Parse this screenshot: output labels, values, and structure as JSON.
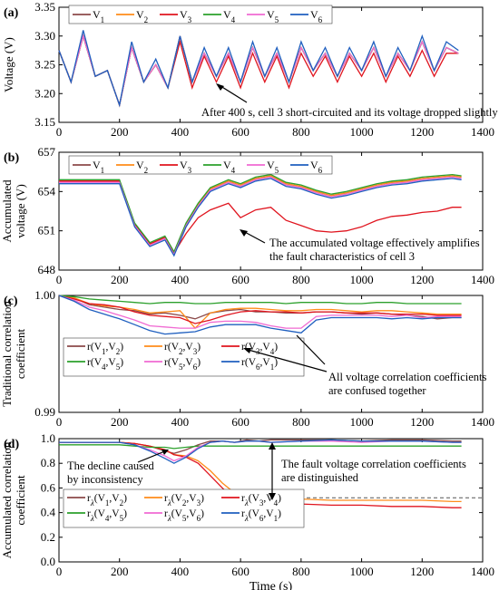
{
  "chart_data": [
    {
      "type": "line",
      "panel_label": "(a)",
      "ylabel": "Voltage (V)",
      "xlabel": "",
      "xlim": [
        0,
        1400
      ],
      "ylim": [
        3.15,
        3.35
      ],
      "xticks": [
        0,
        200,
        400,
        600,
        800,
        1000,
        1200,
        1400
      ],
      "yticks": [
        3.15,
        3.2,
        3.25,
        3.3,
        3.35
      ],
      "ytick_labels": [
        "3.15",
        "3.20",
        "3.25",
        "3.30",
        "3.35"
      ],
      "legend": [
        "V1",
        "V2",
        "V3",
        "V4",
        "V5",
        "V6"
      ],
      "annotation": "After 400 s, cell 3 short-circuited and its voltage dropped slightly",
      "x": [
        0,
        40,
        80,
        120,
        160,
        200,
        240,
        280,
        320,
        360,
        400,
        440,
        480,
        520,
        560,
        600,
        640,
        680,
        720,
        760,
        800,
        840,
        880,
        920,
        960,
        1000,
        1040,
        1080,
        1120,
        1160,
        1200,
        1240,
        1280,
        1320
      ],
      "series": [
        {
          "name": "V1",
          "values": [
            3.275,
            3.22,
            3.3,
            3.23,
            3.24,
            3.18,
            3.28,
            3.22,
            3.25,
            3.21,
            3.3,
            3.22,
            3.27,
            3.23,
            3.27,
            3.22,
            3.28,
            3.23,
            3.27,
            3.22,
            3.28,
            3.24,
            3.27,
            3.23,
            3.27,
            3.24,
            3.28,
            3.23,
            3.27,
            3.24,
            3.29,
            3.24,
            3.28,
            3.27
          ]
        },
        {
          "name": "V2",
          "values": [
            3.275,
            3.22,
            3.3,
            3.23,
            3.24,
            3.18,
            3.28,
            3.22,
            3.25,
            3.21,
            3.3,
            3.22,
            3.27,
            3.23,
            3.27,
            3.22,
            3.28,
            3.23,
            3.27,
            3.22,
            3.28,
            3.24,
            3.27,
            3.23,
            3.27,
            3.24,
            3.28,
            3.23,
            3.27,
            3.24,
            3.29,
            3.24,
            3.28,
            3.27
          ]
        },
        {
          "name": "V3",
          "values": [
            3.275,
            3.22,
            3.3,
            3.23,
            3.24,
            3.18,
            3.28,
            3.22,
            3.25,
            3.21,
            3.29,
            3.21,
            3.265,
            3.22,
            3.265,
            3.21,
            3.27,
            3.22,
            3.265,
            3.21,
            3.27,
            3.23,
            3.265,
            3.22,
            3.265,
            3.23,
            3.27,
            3.22,
            3.265,
            3.23,
            3.275,
            3.23,
            3.27,
            3.27
          ]
        },
        {
          "name": "V4",
          "values": [
            3.275,
            3.22,
            3.3,
            3.23,
            3.24,
            3.18,
            3.28,
            3.22,
            3.25,
            3.21,
            3.3,
            3.22,
            3.27,
            3.23,
            3.27,
            3.22,
            3.28,
            3.23,
            3.27,
            3.22,
            3.28,
            3.24,
            3.27,
            3.23,
            3.27,
            3.24,
            3.28,
            3.23,
            3.27,
            3.24,
            3.29,
            3.24,
            3.28,
            3.27
          ]
        },
        {
          "name": "V5",
          "values": [
            3.275,
            3.22,
            3.3,
            3.23,
            3.24,
            3.18,
            3.28,
            3.22,
            3.25,
            3.21,
            3.3,
            3.22,
            3.27,
            3.23,
            3.27,
            3.22,
            3.28,
            3.23,
            3.27,
            3.22,
            3.28,
            3.24,
            3.27,
            3.23,
            3.27,
            3.24,
            3.28,
            3.23,
            3.27,
            3.24,
            3.29,
            3.24,
            3.28,
            3.27
          ]
        },
        {
          "name": "V6",
          "values": [
            3.275,
            3.22,
            3.31,
            3.23,
            3.24,
            3.18,
            3.29,
            3.22,
            3.26,
            3.21,
            3.3,
            3.22,
            3.28,
            3.23,
            3.28,
            3.22,
            3.29,
            3.23,
            3.28,
            3.22,
            3.29,
            3.24,
            3.28,
            3.23,
            3.28,
            3.24,
            3.29,
            3.23,
            3.28,
            3.24,
            3.3,
            3.24,
            3.29,
            3.275
          ]
        }
      ]
    },
    {
      "type": "line",
      "panel_label": "(b)",
      "ylabel": "Accumulated voltage (V)",
      "xlabel": "",
      "xlim": [
        0,
        1400
      ],
      "ylim": [
        648,
        657
      ],
      "xticks": [
        0,
        200,
        400,
        600,
        800,
        1000,
        1200,
        1400
      ],
      "yticks": [
        648,
        651,
        654,
        657
      ],
      "ytick_labels": [
        "648",
        "651",
        "654",
        "657"
      ],
      "legend": [
        "V1",
        "V2",
        "V3",
        "V4",
        "V5",
        "V6"
      ],
      "annotation": "The accumulated voltage effectively amplifies the fault characteristics of cell 3",
      "x": [
        0,
        100,
        200,
        250,
        300,
        350,
        380,
        420,
        460,
        500,
        560,
        600,
        650,
        700,
        750,
        800,
        850,
        900,
        950,
        1000,
        1050,
        1100,
        1150,
        1200,
        1250,
        1300,
        1330
      ],
      "series": [
        {
          "name": "V1",
          "values": [
            654.8,
            654.8,
            654.8,
            651.5,
            650.0,
            650.5,
            649.3,
            651.5,
            653.0,
            654.2,
            654.8,
            654.5,
            655.0,
            655.2,
            654.6,
            654.4,
            654.0,
            653.7,
            653.9,
            654.2,
            654.5,
            654.7,
            654.8,
            655.0,
            655.1,
            655.2,
            655.1
          ]
        },
        {
          "name": "V2",
          "values": [
            654.8,
            654.8,
            654.8,
            651.5,
            650.0,
            650.5,
            649.3,
            651.5,
            653.0,
            654.2,
            654.8,
            654.5,
            655.0,
            655.2,
            654.6,
            654.4,
            654.0,
            653.7,
            653.9,
            654.2,
            654.5,
            654.7,
            654.8,
            655.0,
            655.1,
            655.2,
            655.1
          ]
        },
        {
          "name": "V3",
          "values": [
            654.8,
            654.8,
            654.8,
            651.5,
            650.0,
            650.5,
            649.3,
            650.8,
            652.0,
            652.6,
            653.1,
            652.0,
            652.6,
            652.8,
            651.8,
            651.4,
            651.0,
            650.9,
            651.0,
            651.3,
            651.8,
            652.1,
            652.2,
            652.4,
            652.5,
            652.8,
            652.8
          ]
        },
        {
          "name": "V4",
          "values": [
            654.9,
            654.9,
            654.9,
            651.6,
            650.1,
            650.6,
            649.4,
            651.6,
            653.1,
            654.3,
            654.9,
            654.6,
            655.1,
            655.3,
            654.7,
            654.5,
            654.1,
            653.8,
            654.0,
            654.3,
            654.6,
            654.8,
            654.9,
            655.1,
            655.2,
            655.3,
            655.2
          ]
        },
        {
          "name": "V5",
          "values": [
            654.7,
            654.7,
            654.7,
            651.4,
            649.9,
            650.4,
            649.2,
            651.4,
            652.9,
            654.1,
            654.7,
            654.4,
            654.9,
            655.1,
            654.5,
            654.3,
            653.9,
            653.6,
            653.8,
            654.1,
            654.4,
            654.6,
            654.7,
            654.9,
            655.0,
            655.1,
            655.0
          ]
        },
        {
          "name": "V6",
          "values": [
            654.6,
            654.6,
            654.6,
            651.3,
            649.8,
            650.3,
            649.1,
            651.3,
            652.8,
            654.0,
            654.6,
            654.3,
            654.8,
            655.0,
            654.4,
            654.2,
            653.8,
            653.5,
            653.7,
            654.0,
            654.3,
            654.5,
            654.6,
            654.8,
            654.9,
            655.0,
            654.9
          ]
        }
      ]
    },
    {
      "type": "line",
      "panel_label": "(c)",
      "ylabel": "Traditional correlation coefficient",
      "xlabel": "",
      "xlim": [
        0,
        1400
      ],
      "ylim": [
        0.99,
        1.0
      ],
      "xticks": [
        0,
        200,
        400,
        600,
        800,
        1000,
        1200,
        1400
      ],
      "yticks": [
        0.99,
        1.0
      ],
      "ytick_labels": [
        "0.99",
        "1.00"
      ],
      "legend": [
        "r(V1,V2)",
        "r(V2,V3)",
        "r(V3,V4)",
        "r(V4,V5)",
        "r(V5,V6)",
        "r(V6,V1)"
      ],
      "annotation": "All voltage correlation coefficients are confused together",
      "x": [
        0,
        50,
        100,
        150,
        200,
        250,
        300,
        350,
        400,
        450,
        500,
        550,
        600,
        650,
        700,
        750,
        800,
        850,
        900,
        950,
        1000,
        1050,
        1100,
        1150,
        1200,
        1250,
        1300,
        1330
      ],
      "series": [
        {
          "name": "r(V1,V2)",
          "values": [
            1.0,
            0.9998,
            0.9992,
            0.999,
            0.9988,
            0.9987,
            0.9984,
            0.9985,
            0.9983,
            0.998,
            0.9985,
            0.9987,
            0.9988,
            0.9986,
            0.9986,
            0.9985,
            0.9985,
            0.9986,
            0.9986,
            0.9985,
            0.9984,
            0.9985,
            0.9984,
            0.9983,
            0.9982,
            0.998,
            0.9981,
            0.9981
          ]
        },
        {
          "name": "r(V2,V3)",
          "values": [
            1.0,
            0.9998,
            0.9993,
            0.9991,
            0.999,
            0.9988,
            0.9985,
            0.9986,
            0.9987,
            0.9972,
            0.9985,
            0.9988,
            0.9989,
            0.9989,
            0.9988,
            0.9987,
            0.9987,
            0.9988,
            0.9988,
            0.9987,
            0.9986,
            0.9987,
            0.9987,
            0.9986,
            0.9985,
            0.9984,
            0.9984,
            0.9984
          ]
        },
        {
          "name": "r(V3,V4)",
          "values": [
            1.0,
            0.9997,
            0.9993,
            0.9992,
            0.999,
            0.9986,
            0.9983,
            0.9982,
            0.9981,
            0.9976,
            0.9979,
            0.9983,
            0.9986,
            0.9987,
            0.9986,
            0.9986,
            0.9985,
            0.9986,
            0.9986,
            0.9985,
            0.9985,
            0.9985,
            0.9984,
            0.9984,
            0.9984,
            0.9983,
            0.9983,
            0.9983
          ]
        },
        {
          "name": "r(V4,V5)",
          "values": [
            1.0,
            0.9999,
            0.9997,
            0.9996,
            0.9995,
            0.9994,
            0.9993,
            0.9994,
            0.9994,
            0.9993,
            0.9993,
            0.9994,
            0.9994,
            0.9994,
            0.9994,
            0.9993,
            0.9994,
            0.9994,
            0.9994,
            0.9993,
            0.9993,
            0.9994,
            0.9994,
            0.9993,
            0.9993,
            0.9993,
            0.9993,
            0.9993
          ]
        },
        {
          "name": "r(V5,V6)",
          "values": [
            1.0,
            0.9996,
            0.999,
            0.9987,
            0.9983,
            0.9979,
            0.9974,
            0.9973,
            0.9972,
            0.9972,
            0.9977,
            0.9978,
            0.9978,
            0.9977,
            0.9974,
            0.9972,
            0.9972,
            0.9982,
            0.9983,
            0.9983,
            0.9983,
            0.9983,
            0.9982,
            0.9983,
            0.9981,
            0.9982,
            0.9982,
            0.9982
          ]
        },
        {
          "name": "r(V6,V1)",
          "values": [
            1.0,
            0.9995,
            0.9988,
            0.9984,
            0.998,
            0.9975,
            0.997,
            0.9967,
            0.9968,
            0.9969,
            0.9973,
            0.9975,
            0.9975,
            0.9975,
            0.9972,
            0.997,
            0.9968,
            0.9979,
            0.9981,
            0.9981,
            0.9981,
            0.9981,
            0.998,
            0.9981,
            0.998,
            0.9981,
            0.9981,
            0.9981
          ]
        }
      ]
    },
    {
      "type": "line",
      "panel_label": "(d)",
      "ylabel": "Accumulated correlation coefficient",
      "xlabel": "Time (s)",
      "xlim": [
        0,
        1400
      ],
      "ylim": [
        0.0,
        1.0
      ],
      "xticks": [
        0,
        200,
        400,
        600,
        800,
        1000,
        1200,
        1400
      ],
      "yticks": [
        0.0,
        0.2,
        0.4,
        0.6,
        0.8,
        1.0
      ],
      "ytick_labels": [
        "0.0",
        "0.2",
        "0.4",
        "0.6",
        "0.8",
        "1.0"
      ],
      "legend": [
        "rλ(V1,V2)",
        "rλ(V2,V3)",
        "rλ(V3,V4)",
        "rλ(V4,V5)",
        "rλ(V5,V6)",
        "rλ(V6,V1)"
      ],
      "annotations": [
        "The decline caused by inconsistency",
        "The fault voltage correlation coefficients are distinguished"
      ],
      "reference_line_y": 0.52,
      "x": [
        0,
        100,
        200,
        250,
        300,
        350,
        380,
        420,
        460,
        500,
        540,
        580,
        620,
        660,
        700,
        800,
        900,
        1000,
        1100,
        1200,
        1300,
        1330
      ],
      "series": [
        {
          "name": "rλ(V1,V2)",
          "values": [
            0.97,
            0.97,
            0.97,
            0.96,
            0.94,
            0.9,
            0.88,
            0.91,
            0.95,
            0.98,
            0.98,
            0.97,
            0.99,
            0.98,
            0.99,
            0.99,
            0.99,
            0.98,
            0.99,
            0.99,
            0.98,
            0.98
          ]
        },
        {
          "name": "rλ(V2,V3)",
          "values": [
            0.97,
            0.97,
            0.97,
            0.96,
            0.94,
            0.91,
            0.87,
            0.86,
            0.82,
            0.74,
            0.64,
            0.56,
            0.52,
            0.52,
            0.51,
            0.51,
            0.5,
            0.5,
            0.5,
            0.5,
            0.49,
            0.49
          ]
        },
        {
          "name": "rλ(V3,V4)",
          "values": [
            0.97,
            0.97,
            0.97,
            0.96,
            0.94,
            0.91,
            0.87,
            0.85,
            0.8,
            0.7,
            0.6,
            0.5,
            0.48,
            0.47,
            0.47,
            0.47,
            0.46,
            0.46,
            0.45,
            0.45,
            0.44,
            0.44
          ]
        },
        {
          "name": "rλ(V4,V5)",
          "values": [
            0.95,
            0.95,
            0.95,
            0.94,
            0.93,
            0.93,
            0.92,
            0.93,
            0.94,
            0.94,
            0.94,
            0.94,
            0.94,
            0.94,
            0.94,
            0.94,
            0.94,
            0.94,
            0.94,
            0.94,
            0.94,
            0.94
          ]
        },
        {
          "name": "rλ(V5,V6)",
          "values": [
            0.97,
            0.97,
            0.97,
            0.95,
            0.91,
            0.86,
            0.82,
            0.86,
            0.93,
            0.97,
            0.98,
            0.97,
            0.98,
            0.98,
            0.97,
            0.98,
            0.98,
            0.97,
            0.98,
            0.98,
            0.97,
            0.97
          ]
        },
        {
          "name": "rλ(V6,V1)",
          "values": [
            0.97,
            0.97,
            0.97,
            0.95,
            0.9,
            0.84,
            0.8,
            0.85,
            0.92,
            0.97,
            0.98,
            0.97,
            0.98,
            0.98,
            0.97,
            0.98,
            0.99,
            0.98,
            0.98,
            0.98,
            0.97,
            0.97
          ]
        }
      ]
    }
  ],
  "colors": [
    "#8b4a4a",
    "#ff8c1a",
    "#e0141e",
    "#2ca02c",
    "#f06ad2",
    "#1f5fbf"
  ]
}
